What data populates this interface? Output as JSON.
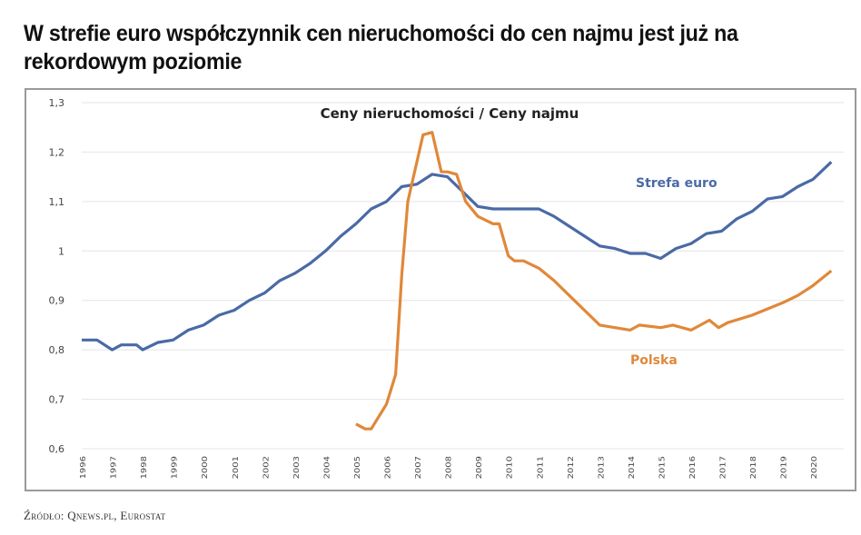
{
  "title": "W strefie euro współczynnik cen nieruchomości do cen najmu jest już na rekordowym poziomie",
  "source": "Źródło: Qnews.pl, Eurostat",
  "chart_data": {
    "type": "line",
    "title": "Ceny nieruchomości / Ceny najmu",
    "xlabel": "",
    "ylabel": "",
    "ylim": [
      0.6,
      1.3
    ],
    "xlim": [
      1996,
      2020.9
    ],
    "yticks": [
      0.6,
      0.7,
      0.8,
      0.9,
      1.0,
      1.1,
      1.2,
      1.3
    ],
    "ytick_labels": [
      "0,6",
      "0,7",
      "0,8",
      "0,9",
      "1",
      "1,1",
      "1,2",
      "1,3"
    ],
    "xtick_labels": [
      "1996",
      "1997",
      "1998",
      "1999",
      "2000",
      "2001",
      "2002",
      "2003",
      "2004",
      "2005",
      "2006",
      "2007",
      "2008",
      "2009",
      "2010",
      "2011",
      "2012",
      "2013",
      "2014",
      "2015",
      "2016",
      "2017",
      "2018",
      "2019",
      "2020"
    ],
    "grid": true,
    "series": [
      {
        "name": "Strefa euro",
        "color": "#4a6aa5",
        "x": [
          1996,
          1996.5,
          1997,
          1997.3,
          1997.8,
          1998,
          1998.5,
          1999,
          1999.5,
          2000,
          2000.5,
          2001,
          2001.5,
          2002,
          2002.5,
          2003,
          2003.5,
          2004,
          2004.5,
          2005,
          2005.5,
          2006,
          2006.5,
          2007,
          2007.5,
          2008,
          2008.5,
          2009,
          2009.5,
          2010,
          2010.5,
          2011,
          2011.5,
          2012,
          2012.5,
          2013,
          2013.5,
          2014,
          2014.5,
          2015,
          2015.5,
          2016,
          2016.5,
          2017,
          2017.5,
          2018,
          2018.5,
          2019,
          2019.5,
          2020,
          2020.6
        ],
        "y": [
          0.82,
          0.82,
          0.8,
          0.81,
          0.81,
          0.8,
          0.815,
          0.82,
          0.84,
          0.85,
          0.87,
          0.88,
          0.9,
          0.915,
          0.94,
          0.955,
          0.975,
          1.0,
          1.03,
          1.055,
          1.085,
          1.1,
          1.13,
          1.135,
          1.155,
          1.15,
          1.12,
          1.09,
          1.085,
          1.085,
          1.085,
          1.085,
          1.07,
          1.05,
          1.03,
          1.01,
          1.005,
          0.995,
          0.995,
          0.985,
          1.005,
          1.015,
          1.035,
          1.04,
          1.065,
          1.08,
          1.105,
          1.11,
          1.13,
          1.145,
          1.18
        ]
      },
      {
        "name": "Polska",
        "color": "#e0883a",
        "x": [
          2005,
          2005.3,
          2005.5,
          2005.8,
          2006,
          2006.3,
          2006.5,
          2006.7,
          2007,
          2007.2,
          2007.5,
          2007.8,
          2008,
          2008.3,
          2008.6,
          2009,
          2009.5,
          2009.7,
          2010,
          2010.2,
          2010.5,
          2011,
          2011.5,
          2012,
          2012.5,
          2013,
          2013.5,
          2014,
          2014.3,
          2015,
          2015.4,
          2016,
          2016.6,
          2016.9,
          2017.2,
          2018,
          2019,
          2019.5,
          2020,
          2020.6
        ],
        "y": [
          0.65,
          0.64,
          0.64,
          0.67,
          0.69,
          0.75,
          0.95,
          1.1,
          1.18,
          1.235,
          1.24,
          1.16,
          1.16,
          1.155,
          1.1,
          1.07,
          1.055,
          1.055,
          0.99,
          0.98,
          0.98,
          0.965,
          0.94,
          0.91,
          0.88,
          0.85,
          0.845,
          0.84,
          0.85,
          0.845,
          0.85,
          0.84,
          0.86,
          0.845,
          0.855,
          0.87,
          0.895,
          0.91,
          0.93,
          0.96
        ]
      }
    ],
    "annotations": [
      "Strefa euro",
      "Polska"
    ]
  }
}
